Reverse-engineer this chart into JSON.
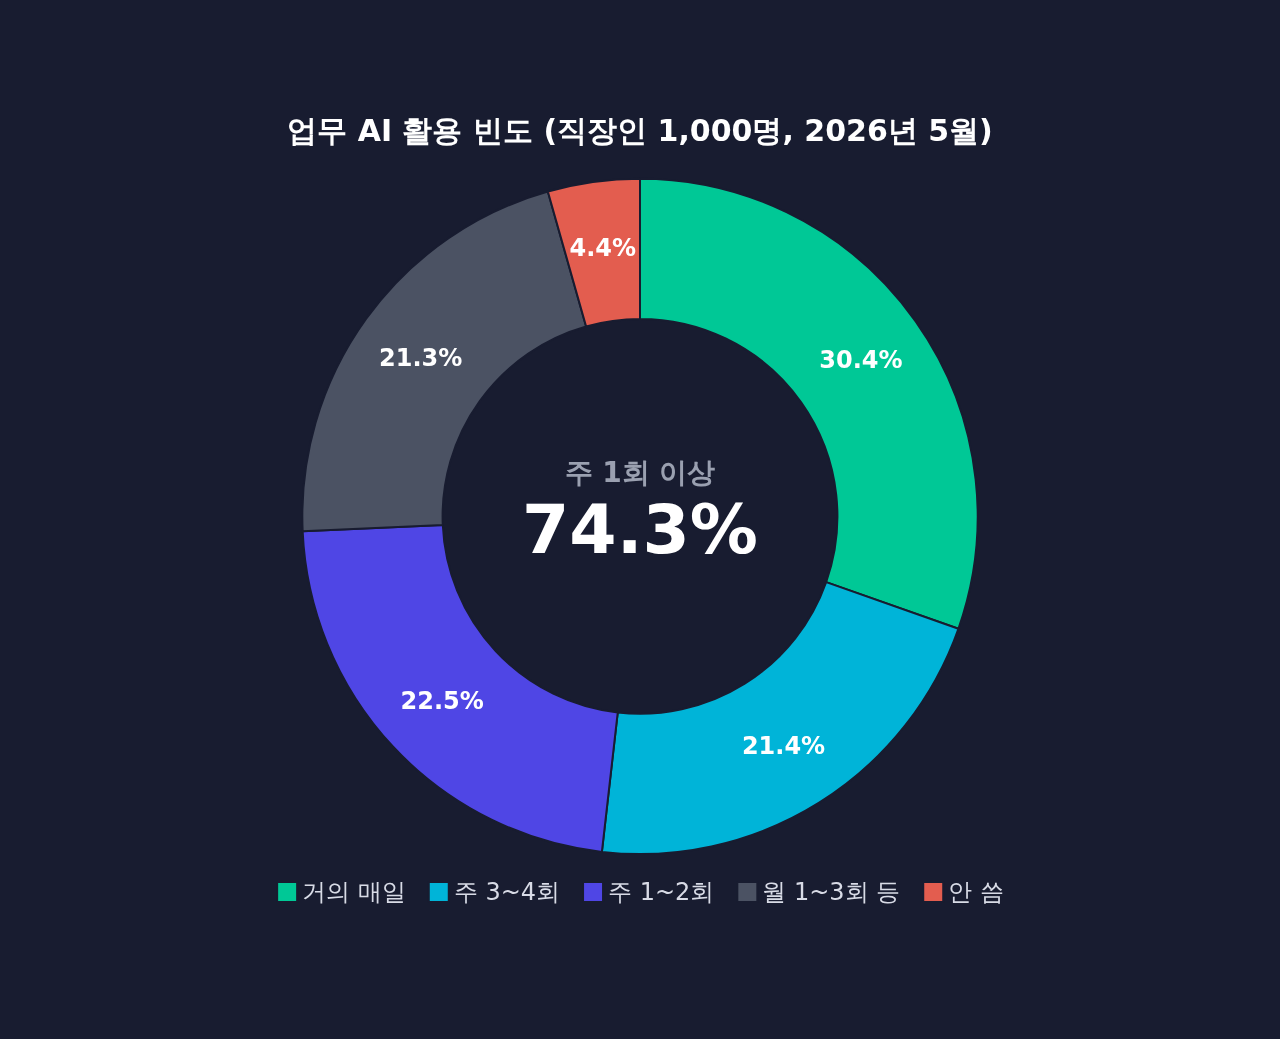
{
  "chart_data": {
    "type": "donut",
    "title": "업무 AI 활용 빈도 (직장인 1,000명, 2026년 5월)",
    "categories": [
      "거의 매일",
      "주 3~4회",
      "주 1~2회",
      "월 1~3회 등",
      "안 씀"
    ],
    "values": [
      30.4,
      21.4,
      22.5,
      21.3,
      4.4
    ],
    "colors": [
      "#00c896",
      "#00b4d8",
      "#4f46e5",
      "#4b5263",
      "#e35d4f"
    ],
    "value_labels": [
      "30.4%",
      "21.4%",
      "22.5%",
      "21.3%",
      "4.4%"
    ],
    "annotations": [
      "주 1회 이상",
      "74.3%"
    ],
    "legend": "bottom"
  }
}
